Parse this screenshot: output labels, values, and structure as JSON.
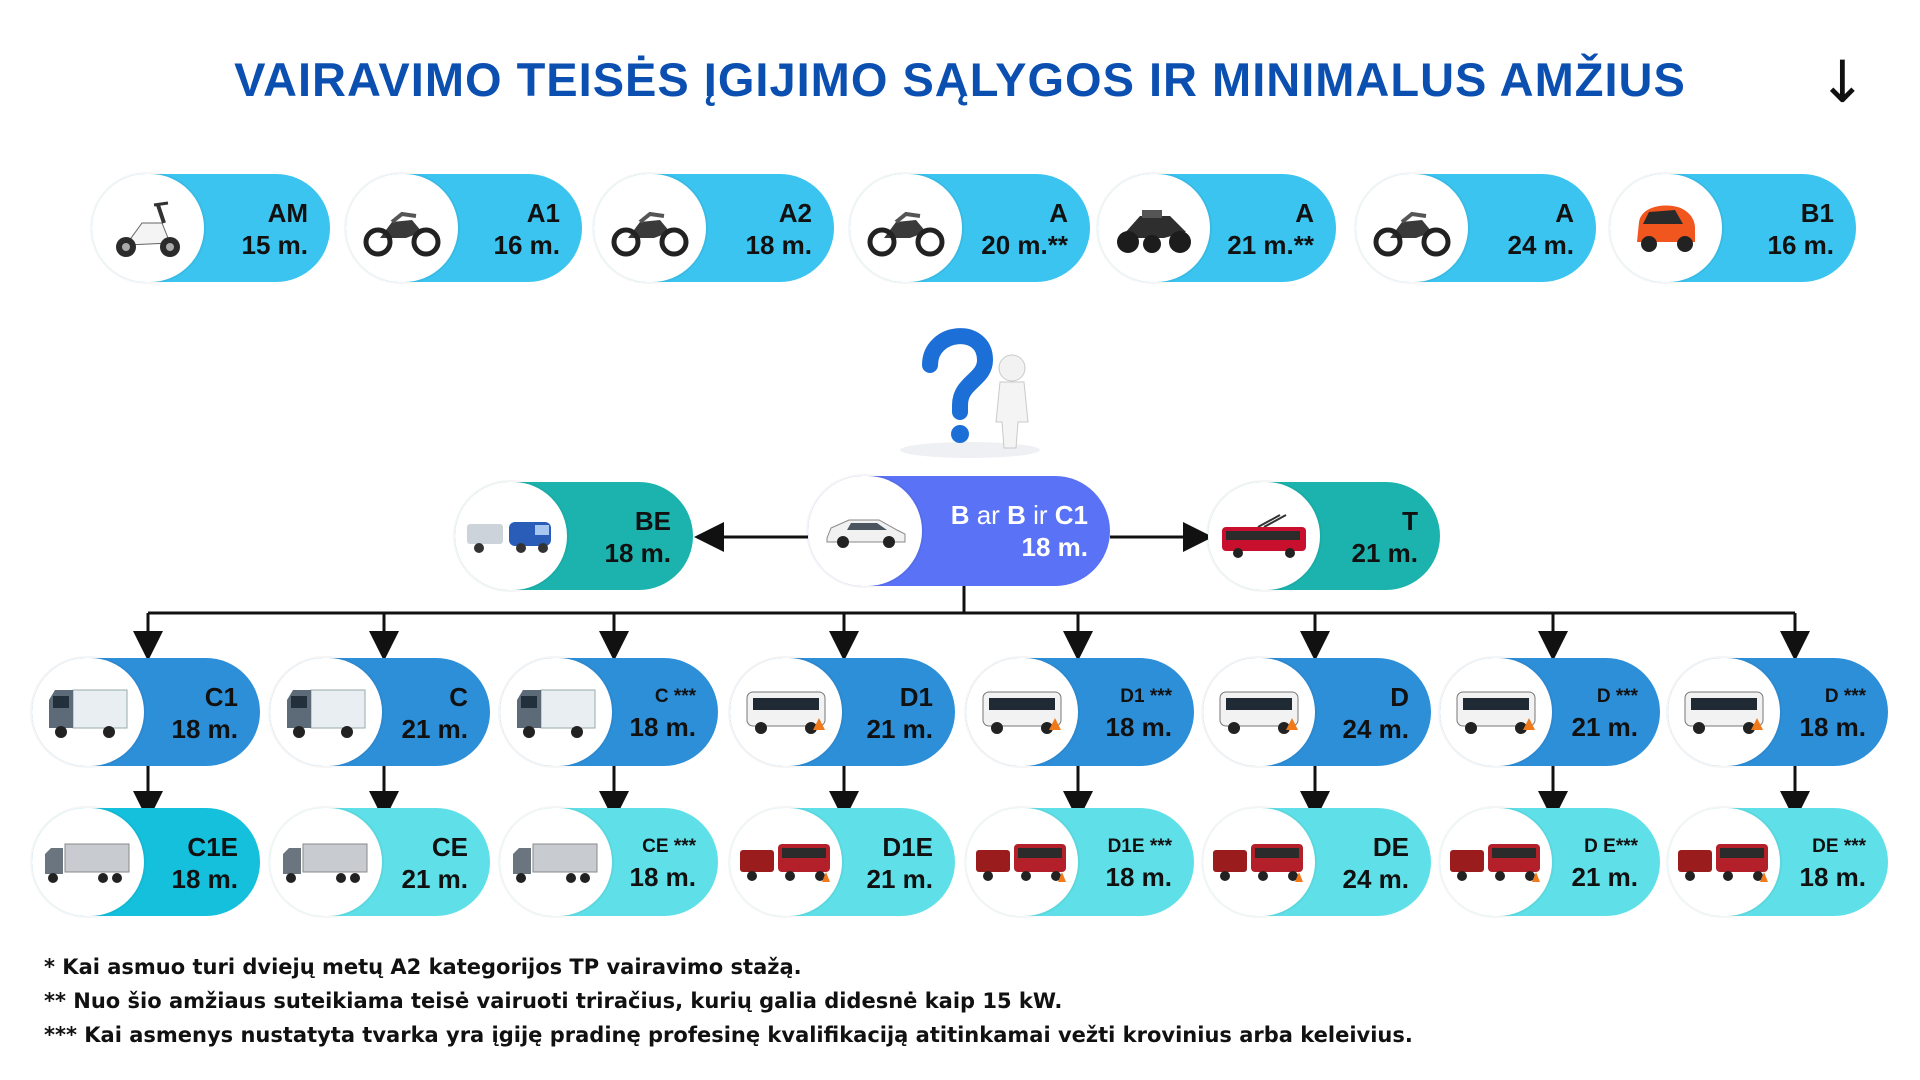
{
  "title": "VAIRAVIMO TEISĖS ĮGIJIMO SĄLYGOS IR MINIMALUS AMŽIUS",
  "moto_row": [
    {
      "code": "AM",
      "age": "15 m.",
      "icon": "scooter-icon"
    },
    {
      "code": "A1",
      "age": "16 m.",
      "icon": "motorcycle-icon"
    },
    {
      "code": "A2",
      "age": "18 m.",
      "icon": "motorcycle-icon"
    },
    {
      "code": "A",
      "age": "20 m.**",
      "icon": "motorcycle-icon"
    },
    {
      "code": "A",
      "age": "21 m.**",
      "icon": "trike-icon"
    },
    {
      "code": "A",
      "age": "24 m.",
      "icon": "motorcycle-icon"
    },
    {
      "code": "B1",
      "age": "16 m.",
      "icon": "microcar-icon"
    }
  ],
  "center": {
    "code_b": "B",
    "code_ar": "ar",
    "code_b2": "B",
    "code_ir": "ir",
    "code_c1": "C1",
    "age": "18 m."
  },
  "be": {
    "code": "BE",
    "age": "18 m."
  },
  "t": {
    "code": "T",
    "age": "21 m."
  },
  "heavy_row": [
    {
      "code": "C1",
      "age": "18 m."
    },
    {
      "code": "C",
      "age": "21 m."
    },
    {
      "code": "C ***",
      "age": "18 m."
    },
    {
      "code": "D1",
      "age": "21 m."
    },
    {
      "code": "D1 ***",
      "age": "18 m."
    },
    {
      "code": "D",
      "age": "24 m."
    },
    {
      "code": "D ***",
      "age": "21 m."
    },
    {
      "code": "D ***",
      "age": "18 m."
    }
  ],
  "trailer_row": [
    {
      "code": "C1E",
      "age": "18 m."
    },
    {
      "code": "CE",
      "age": "21 m."
    },
    {
      "code": "CE ***",
      "age": "18 m."
    },
    {
      "code": "D1E",
      "age": "21 m."
    },
    {
      "code": "D1E ***",
      "age": "18 m."
    },
    {
      "code": "DE",
      "age": "24 m."
    },
    {
      "code": "D E***",
      "age": "21 m."
    },
    {
      "code": "DE ***",
      "age": "18 m."
    }
  ],
  "footnotes": [
    "* Kai asmuo turi dviejų metų A2 kategorijos TP vairavimo stažą.",
    "** Nuo šio amžiaus suteikiama teisė vairuoti triračius, kurių galia didesnė kaip 15 kW.",
    "*** Kai asmenys nustatyta tvarka yra įgiję pradinę profesinę kvalifikaciją atitinkamai vežti krovinius arba keleivius."
  ],
  "colors": {
    "title": "#0b4fb0",
    "moto": "#3bc4ef",
    "center": "#5a72f5",
    "teal": "#1cb3ae",
    "heavy": "#2e8fd9",
    "trailer": "#5fe0e8",
    "trailer_first": "#14c0dc"
  }
}
